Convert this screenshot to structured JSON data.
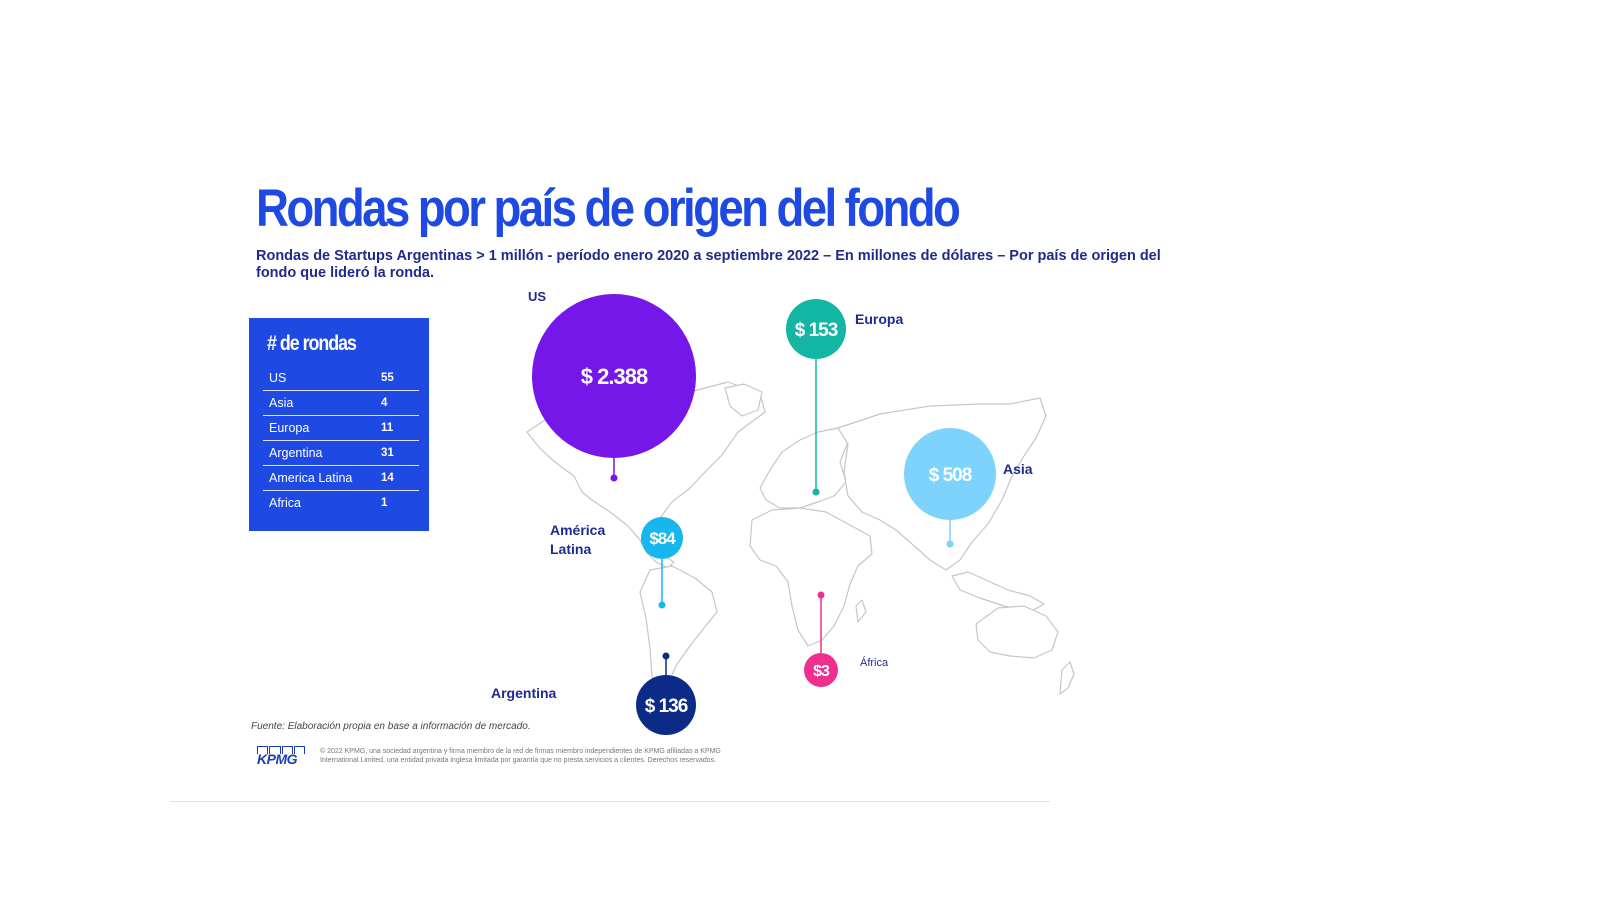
{
  "title": "Rondas por país de origen del fondo",
  "subtitle": "Rondas de Startups Argentinas > 1 millón - período enero 2020 a septiembre 2022 – En millones de dólares – Por país de origen del fondo que lideró la ronda.",
  "rounds_table": {
    "title": "# de rondas",
    "rows": [
      {
        "name": "US",
        "count": "55"
      },
      {
        "name": "Asia",
        "count": "4"
      },
      {
        "name": "Europa",
        "count": "11"
      },
      {
        "name": "Argentina",
        "count": "31"
      },
      {
        "name": "America Latina",
        "count": "14"
      },
      {
        "name": "Africa",
        "count": "1"
      }
    ]
  },
  "chart_data": {
    "type": "bubble-map",
    "title": "Rondas por país de origen del fondo",
    "unit": "millones de dólares",
    "series": [
      {
        "key": "us",
        "region": "US",
        "value": 2388,
        "label": "$ 2.388",
        "color": "#7417e8"
      },
      {
        "key": "europa",
        "region": "Europa",
        "value": 153,
        "label": "$ 153",
        "color": "#13b5a3"
      },
      {
        "key": "asia",
        "region": "Asia",
        "value": 508,
        "label": "$ 508",
        "color": "#7dd3fb"
      },
      {
        "key": "latam",
        "region": "América Latina",
        "value": 84,
        "label": "$84",
        "color": "#17b7ee"
      },
      {
        "key": "argentina",
        "region": "Argentina",
        "value": 136,
        "label": "$ 136",
        "color": "#0b2b86"
      },
      {
        "key": "africa",
        "region": "África",
        "value": 3,
        "label": "$3",
        "color": "#ee2f8e"
      }
    ]
  },
  "footnote": "Fuente: Elaboración propia en base a información de mercado.",
  "logo_text": "KPMG",
  "copyright": "© 2022 KPMG, una sociedad argentina y firma miembro de la red de firmas miembro independientes de KPMG afiliadas a KPMG International Limited, una entidad privada inglesa limitada por garantía que no presta servicios a clientes. Derechos reservados."
}
